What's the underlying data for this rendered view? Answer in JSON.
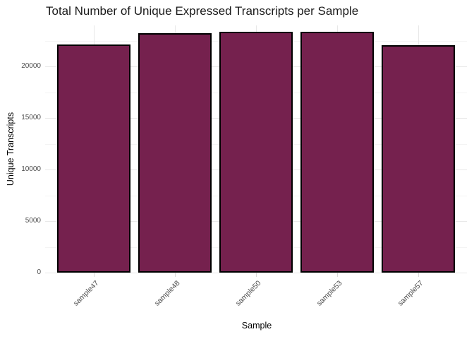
{
  "figure": {
    "background": "#FFFFFF"
  },
  "chart_data": {
    "type": "bar",
    "title": "Total Number of Unique Expressed Transcripts per Sample",
    "xlabel": "Sample",
    "ylabel": "Unique Transcripts",
    "categories": [
      "sample47",
      "sample48",
      "sample50",
      "sample53",
      "sample57"
    ],
    "values": [
      22150,
      23250,
      23350,
      23400,
      22050
    ],
    "ylim": [
      0,
      24000
    ],
    "yticks_major": [
      0,
      5000,
      10000,
      15000,
      20000
    ],
    "yticks_minor": [
      2500,
      7500,
      12500,
      17500,
      22500
    ],
    "grid": "major-and-minor-horizontal, major-vertical-at-categories",
    "legend": "none",
    "colors": {
      "bar_fill": "#75214E",
      "bar_stroke": "#000000",
      "grid_major": "#E8E8E8",
      "grid_minor": "#F4F4F4",
      "tick_mark": "#D9D9D9",
      "tick_label": "#4D4D4D",
      "axis_title": "#000000",
      "title": "#1A1A1A",
      "background": "#FFFFFF"
    }
  }
}
